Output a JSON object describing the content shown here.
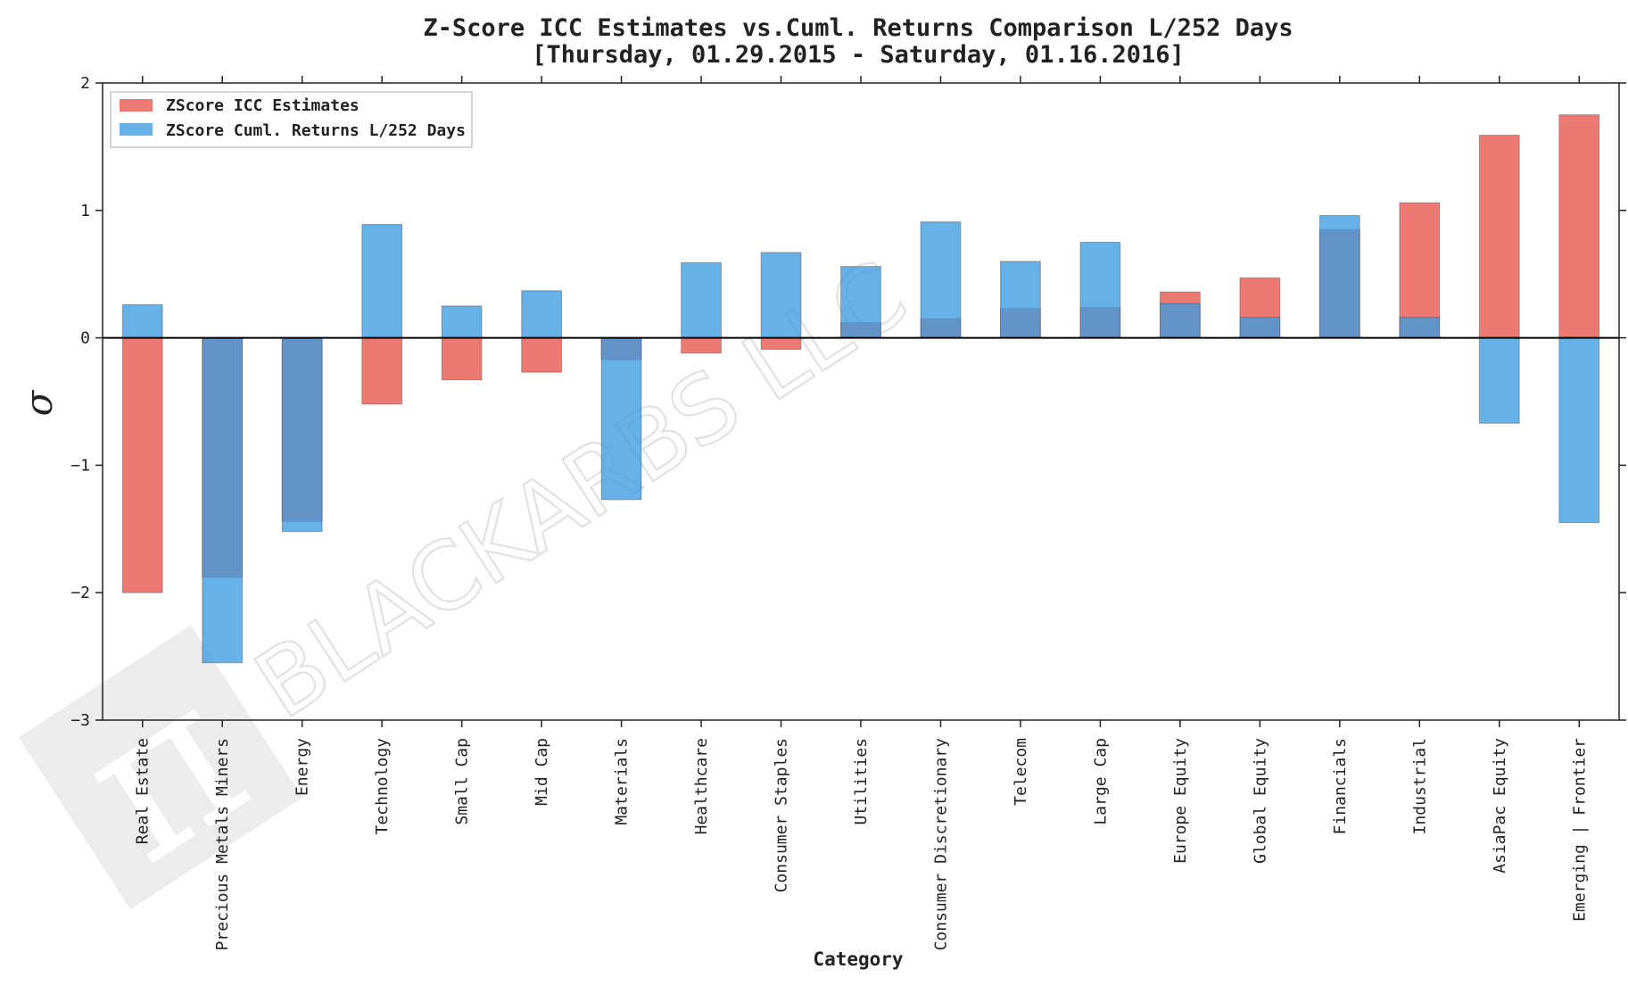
{
  "chart_data": {
    "type": "bar",
    "title": "Z-Score ICC Estimates vs.Cuml. Returns Comparison L/252 Days",
    "subtitle": "[Thursday, 01.29.2015 - Saturday, 01.16.2016]",
    "xlabel": "Category",
    "ylabel": "σ",
    "ylim": [
      -3,
      2
    ],
    "yticks": [
      2,
      1,
      0,
      -1,
      -2,
      -3
    ],
    "ytick_labels": [
      "2",
      "1",
      "0",
      "−1",
      "−2",
      "−3"
    ],
    "grid": false,
    "legend_position": "top-left",
    "categories": [
      "Real Estate",
      "Precious Metals Miners",
      "Energy",
      "Technology",
      "Small Cap",
      "Mid Cap",
      "Materials",
      "Healthcare",
      "Consumer Staples",
      "Utilities",
      "Consumer Discretionary",
      "Telecom",
      "Large Cap",
      "Europe Equity",
      "Global Equity",
      "Financials",
      "Industrial",
      "AsiaPac Equity",
      "Emerging | Frontier"
    ],
    "series": [
      {
        "name": "ZScore ICC Estimates",
        "color": "#e8544a",
        "values": [
          -2.0,
          -1.88,
          -1.44,
          -0.52,
          -0.33,
          -0.27,
          -0.17,
          -0.12,
          -0.09,
          0.12,
          0.15,
          0.23,
          0.24,
          0.36,
          0.47,
          0.85,
          1.06,
          1.59,
          1.75
        ]
      },
      {
        "name": "ZScore Cuml. Returns L/252 Days",
        "color": "#3b9be0",
        "values": [
          0.26,
          -2.55,
          -1.52,
          0.89,
          0.25,
          0.37,
          -1.27,
          0.59,
          0.67,
          0.56,
          0.91,
          0.6,
          0.75,
          0.27,
          0.16,
          0.96,
          0.16,
          -0.67,
          -1.45
        ]
      }
    ]
  },
  "watermark": {
    "text": "BLACKARBS LLC",
    "logo_glyph": "π"
  }
}
